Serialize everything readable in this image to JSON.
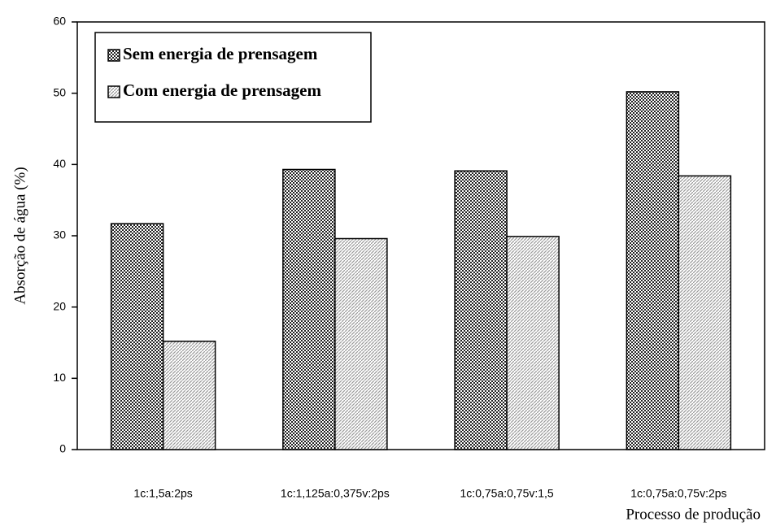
{
  "chart_data": {
    "type": "bar",
    "categories": [
      "1c:1,5a:2ps",
      "1c:1,125a:0,375v:2ps",
      "1c:0,75a:0,75v:1,5",
      "1c:0,75a:0,75v:2ps"
    ],
    "series": [
      {
        "name": "Sem energia de prensagem",
        "color": "#222222",
        "pattern": "checker",
        "values": [
          31.7,
          39.3,
          39.1,
          50.2
        ]
      },
      {
        "name": "Com energia de prensagem",
        "color": "#9a9a9a",
        "pattern": "hatch",
        "values": [
          15.2,
          29.6,
          29.9,
          38.4
        ]
      }
    ],
    "ylabel": "Absorção de água (%)",
    "xlabel": "Processo de produção",
    "ylim": [
      0,
      60
    ],
    "yticks": [
      0,
      10,
      20,
      30,
      40,
      50,
      60
    ],
    "grid": false,
    "legend": "upper left"
  }
}
